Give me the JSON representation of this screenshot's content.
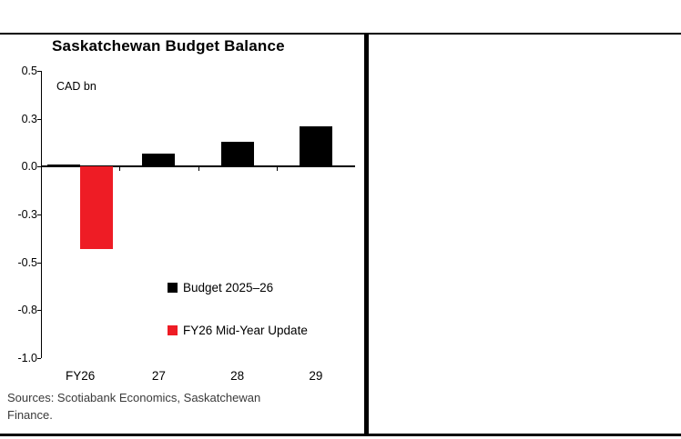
{
  "page": {
    "background": "#ffffff",
    "rule_color": "#000000"
  },
  "chart": {
    "title": "Saskatchewan Budget Balance",
    "unit_label": "CAD bn",
    "sources": [
      "Sources: Scotiabank Economics, Saskatchewan",
      "Finance."
    ]
  },
  "legend": {
    "items": [
      {
        "label": "Budget 2025–26",
        "color": "#000000"
      },
      {
        "label": "FY26 Mid-Year Update",
        "color": "#ee1c25"
      }
    ]
  },
  "chart_data": {
    "type": "bar",
    "title": "Saskatchewan Budget Balance",
    "ylabel": "CAD bn",
    "xlabel": "",
    "categories": [
      "FY26",
      "27",
      "28",
      "29"
    ],
    "series": [
      {
        "name": "Budget 2025–26",
        "color": "#000000",
        "values": [
          0.01,
          0.07,
          0.13,
          0.21
        ]
      },
      {
        "name": "FY26 Mid-Year Update",
        "color": "#ee1c25",
        "values": [
          -0.43,
          null,
          null,
          null
        ]
      }
    ],
    "ylim": [
      -1.0,
      0.5
    ],
    "y_ticks": [
      {
        "value": 0.5,
        "label": "0.5"
      },
      {
        "value": 0.25,
        "label": "0.3"
      },
      {
        "value": 0.0,
        "label": "0.0"
      },
      {
        "value": -0.25,
        "label": "-0.3"
      },
      {
        "value": -0.5,
        "label": "-0.5"
      },
      {
        "value": -0.75,
        "label": "-0.8"
      },
      {
        "value": -1.0,
        "label": "-1.0"
      }
    ],
    "grid": false,
    "legend_position": "inside-lower-middle"
  }
}
